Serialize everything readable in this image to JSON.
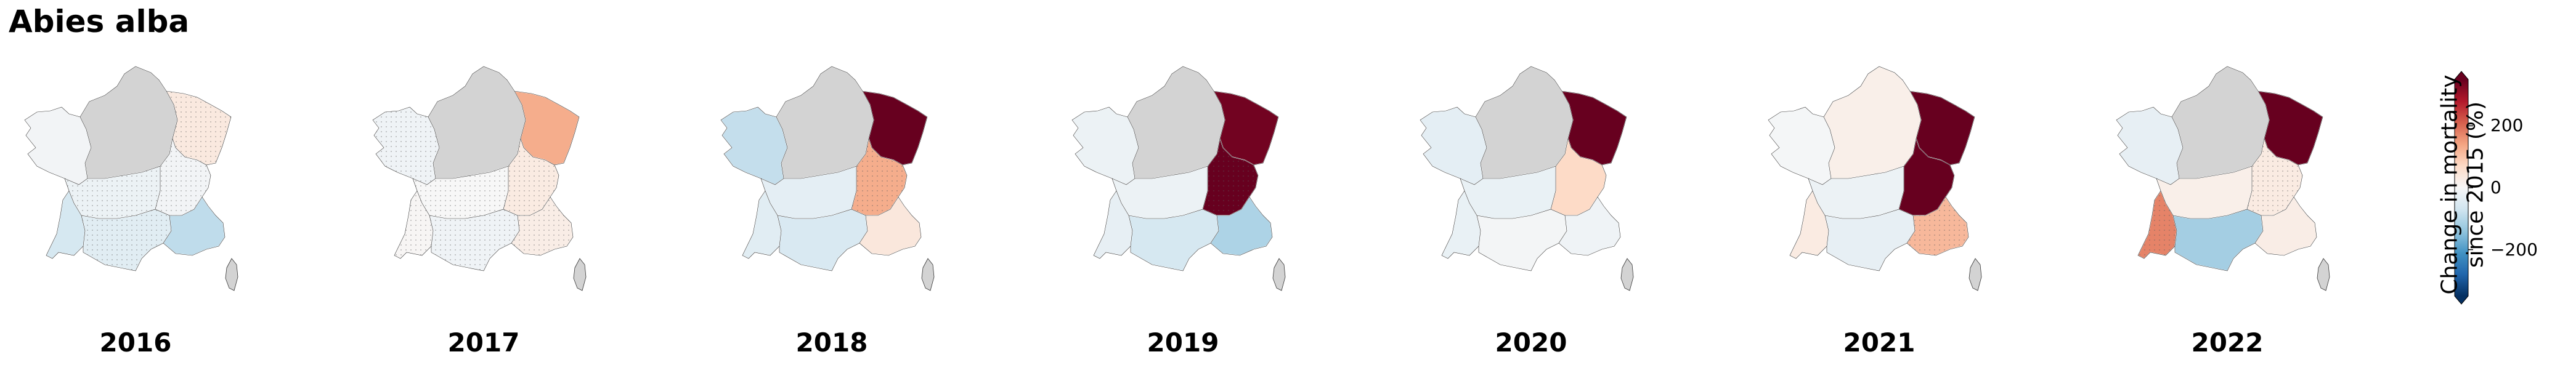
{
  "title": "Abies alba",
  "years": [
    {
      "label": "2016",
      "values": {
        "NW": -10,
        "N": 0,
        "NE": 35,
        "C": -20,
        "CE": -10,
        "SW": -60,
        "S": -40,
        "SE": -90
      },
      "hatch": [
        "NE",
        "C",
        "CE",
        "S"
      ]
    },
    {
      "label": "2017",
      "values": {
        "NW": -15,
        "N": 0,
        "NE": 130,
        "C": 0,
        "CE": 30,
        "SW": 5,
        "S": -15,
        "SE": 25
      },
      "hatch": [
        "NW",
        "C",
        "CE",
        "SW",
        "S",
        "SE"
      ]
    },
    {
      "label": "2018",
      "values": {
        "NW": -85,
        "N": 0,
        "NE": 380,
        "C": -35,
        "CE": 130,
        "SW": -40,
        "S": -55,
        "SE": 40
      },
      "hatch": [
        "CE"
      ]
    },
    {
      "label": "2019",
      "values": {
        "NW": -20,
        "N": 0,
        "NE": 340,
        "C": -20,
        "CE": 380,
        "SW": -30,
        "S": -60,
        "SE": -110
      },
      "hatch": [
        "CE"
      ]
    },
    {
      "label": "2020",
      "values": {
        "NW": -35,
        "N": 0,
        "NE": 380,
        "C": -25,
        "CE": 70,
        "SW": -25,
        "S": -8,
        "SE": -15
      },
      "hatch": []
    },
    {
      "label": "2021",
      "values": {
        "NW": -5,
        "N": 20,
        "NE": 360,
        "C": -20,
        "CE": 370,
        "SW": 30,
        "S": -30,
        "SE": 115
      },
      "hatch": [
        "SE"
      ]
    },
    {
      "label": "2022",
      "values": {
        "NW": -30,
        "N": 0,
        "NE": 380,
        "C": 20,
        "CE": 30,
        "SW": 175,
        "S": -120,
        "SE": 25
      },
      "hatch": [
        "SW",
        "CE"
      ]
    }
  ],
  "colorbar": {
    "label_line1": "Change in mortality",
    "label_line2": "since 2015 (%)",
    "vmin": -350,
    "vmax": 350,
    "ticks": [
      {
        "value": 200,
        "label": "200"
      },
      {
        "value": 0,
        "label": "0"
      },
      {
        "value": -200,
        "label": "−200"
      }
    ],
    "colormap": "RdBu_r",
    "extend": "both"
  },
  "no_data_color": "#d3d3d3"
}
